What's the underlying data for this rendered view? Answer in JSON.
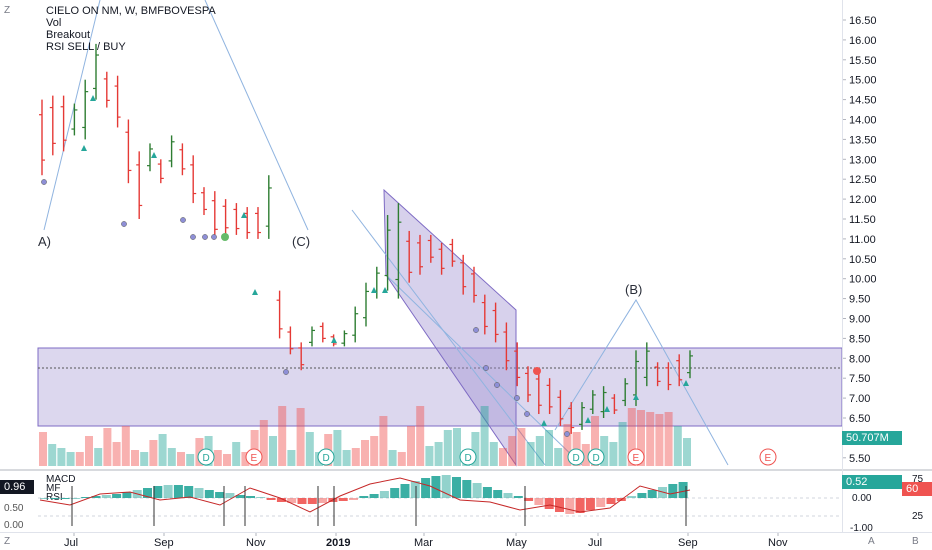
{
  "header": {
    "symbol_line": "CIELO ON NM, W, BMFBOVESPA",
    "studies": [
      "Vol",
      "Breakout",
      "RSI SELL / BUY"
    ]
  },
  "price_axis": {
    "ticks": [
      "16.50",
      "16.00",
      "15.50",
      "15.00",
      "14.50",
      "14.00",
      "13.50",
      "13.00",
      "12.50",
      "12.00",
      "11.50",
      "11.00",
      "10.50",
      "10.00",
      "9.50",
      "9.00",
      "8.50",
      "8.00",
      "7.50",
      "7.00",
      "6.50",
      "6.00",
      "5.50"
    ],
    "volume_label": "50.707M"
  },
  "lower_pane": {
    "studies": [
      "MACD",
      "MF",
      "RSI"
    ],
    "left_ticks": [
      "1.00",
      "0.50",
      "0.00"
    ],
    "left_current": "0.96",
    "right_ticks": [
      "0.00",
      "-1.00"
    ],
    "right_current": "0.52",
    "far_ticks": [
      "75",
      "50",
      "25"
    ],
    "far_current": "60"
  },
  "time_axis": {
    "labels": [
      "Jul",
      "Sep",
      "Nov",
      "2019",
      "Mar",
      "May",
      "Jul",
      "Sep",
      "Nov"
    ],
    "corner_left": "Z",
    "corner_right_a": "A",
    "corner_right_b": "B"
  },
  "waves": {
    "a": "A)",
    "c": "(C)",
    "b": "(B)"
  },
  "events": [
    "D",
    "E",
    "D",
    "D",
    "D",
    "D",
    "E",
    "E"
  ],
  "colors": {
    "up": "#26a69a",
    "down": "#ef5350",
    "bar_up": "#2e7d32",
    "bar_down": "#e53935",
    "zone": "#9c8ccf",
    "wave": "#90b4e0"
  }
}
